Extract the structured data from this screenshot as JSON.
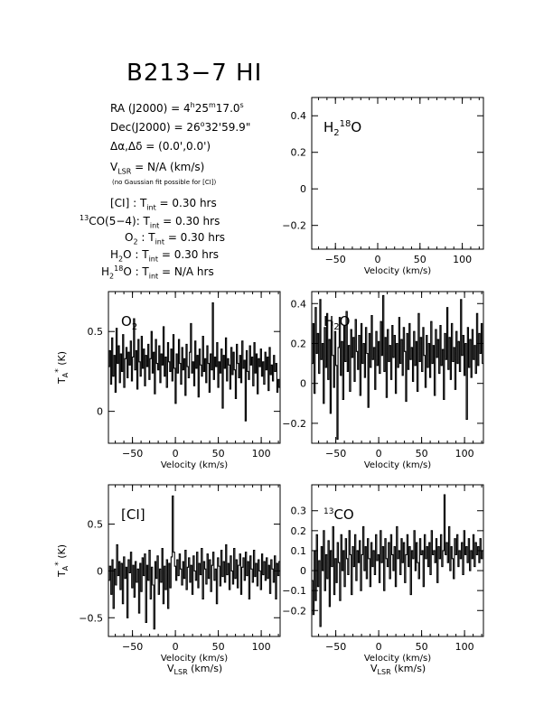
{
  "title": "B213−7 HI",
  "info": {
    "ra": {
      "prefix": "RA (J2000) =  4",
      "h": "h",
      "mid1": "25",
      "m": "m",
      "mid2": "17.0",
      "s": "s"
    },
    "dec": {
      "prefix": "Dec(J2000) =  26",
      "deg": "o",
      "rest": "32'59.9\""
    },
    "offset": "Δα,Δδ = (0.0',0.0')",
    "vlsr": {
      "main": "V",
      "sub": "LSR",
      "rest": " = N/A  (km/s)"
    },
    "note": "(no Gaussian fit possible for [CI])",
    "tint": [
      {
        "pre": "[CI] : T",
        "sub": "int",
        "post": " = 0.30 hrs",
        "sup": ""
      },
      {
        "pre": "CO(5−4): T",
        "sup": "13",
        "sub": "int",
        "post": " = 0.30 hrs"
      },
      {
        "pre": "O",
        "sub2": "2",
        "mid": " : T",
        "sub": "int",
        "post": " = 0.30 hrs"
      },
      {
        "pre": "H",
        "sub2": "2",
        "mid": "O : T",
        "sub": "int",
        "post": " = 0.30 hrs"
      },
      {
        "pre": "H",
        "sub2": "2",
        "sup2": "18",
        "mid": "O : T",
        "sub": "int",
        "post": " = N/A  hrs"
      }
    ]
  },
  "colors": {
    "line": "#000000",
    "background": "#ffffff"
  },
  "chart_data": [
    {
      "id": "h218o",
      "type": "line",
      "label_main": "H",
      "label_sub": "2",
      "label_sup": "18",
      "label_tail": "O",
      "xlabel": "Velocity (km/s)",
      "ylabel": "",
      "xlim": [
        -78,
        125
      ],
      "ylim": [
        -0.33,
        0.5
      ],
      "xticks": [
        -50,
        0,
        50,
        100
      ],
      "yticks": [
        -0.2,
        0,
        0.2,
        0.4
      ],
      "xticklabels": [
        "−50",
        "0",
        "50",
        "100"
      ],
      "yticklabels": [
        "−0.2",
        "0",
        "0.2",
        "0.4"
      ],
      "series": []
    },
    {
      "id": "o2",
      "type": "line",
      "label_main": "O",
      "label_sub": "2",
      "label_sup": "",
      "label_tail": "",
      "xlabel": "Velocity (km/s)",
      "ylabel": "T",
      "xlim": [
        -78,
        122
      ],
      "ylim": [
        -0.2,
        0.75
      ],
      "xticks": [
        -50,
        0,
        50,
        100
      ],
      "yticks": [
        0,
        0.5
      ],
      "xticklabels": [
        "−50",
        "0",
        "50",
        "100"
      ],
      "yticklabels": [
        "0",
        "0.5"
      ],
      "series": [
        {
          "values": [
            0.28,
            0.38,
            0.17,
            0.46,
            0.22,
            0.35,
            0.12,
            0.52,
            0.3,
            0.41,
            0.18,
            0.36,
            0.25,
            0.48,
            0.15,
            0.33,
            0.4,
            0.21,
            0.37,
            0.29,
            0.44,
            0.19,
            0.34,
            0.58,
            0.26,
            0.38,
            0.14,
            0.45,
            0.31,
            0.22,
            0.47,
            0.27,
            0.39,
            0.16,
            0.35,
            0.28,
            0.42,
            0.2,
            0.33,
            0.5,
            0.24,
            0.37,
            0.11,
            0.45,
            0.3,
            0.26,
            0.41,
            0.18,
            0.36,
            0.29,
            0.53,
            0.22,
            0.34,
            0.15,
            0.43,
            0.31,
            0.25,
            0.39,
            0.19,
            0.48,
            0.27,
            0.05,
            0.36,
            0.24,
            0.45,
            0.3,
            0.17,
            0.4,
            0.26,
            0.33,
            0.1,
            0.42,
            0.28,
            0.21,
            0.37,
            0.55,
            0.24,
            0.31,
            0.16,
            0.44,
            0.27,
            0.35,
            0.09,
            0.39,
            0.29,
            0.22,
            0.47,
            0.25,
            0.33,
            0.18,
            0.41,
            0.3,
            0.12,
            0.36,
            0.26,
            0.68,
            0.2,
            0.34,
            0.28,
            0.43,
            0.15,
            0.31,
            0.24,
            0.39,
            0.02,
            0.35,
            0.27,
            0.46,
            0.19,
            0.33,
            0.29,
            0.14,
            0.4,
            0.23,
            0.37,
            0.26,
            0.08,
            0.42,
            0.3,
            0.21,
            0.35,
            0.18,
            0.44,
            0.27,
            0.32,
            -0.06,
            0.38,
            0.25,
            0.2,
            0.41,
            0.29,
            0.34,
            0.16,
            0.43,
            0.24,
            0.36,
            0.11,
            0.33,
            0.28,
            0.39,
            0.22,
            0.31,
            0.17,
            0.37,
            0.26,
            0.34,
            0.13,
            0.4,
            0.23,
            0.29,
            0.19,
            0.35,
            0.25,
            0.3,
            0.12,
            0.2,
            0.15
          ]
        }
      ]
    },
    {
      "id": "h2o",
      "type": "line",
      "label_main": "H",
      "label_sub": "2",
      "label_sup": "",
      "label_tail": "O",
      "xlabel": "Velocity (km/s)",
      "ylabel": "",
      "xlim": [
        -78,
        122
      ],
      "ylim": [
        -0.3,
        0.46
      ],
      "xticks": [
        -50,
        0,
        50,
        100
      ],
      "yticks": [
        -0.2,
        0,
        0.2,
        0.4
      ],
      "xticklabels": [
        "−50",
        "0",
        "50",
        "100"
      ],
      "yticklabels": [
        "−0.2",
        "0",
        "0.2",
        "0.4"
      ],
      "series": [
        {
          "values": [
            0.1,
            0.3,
            -0.05,
            0.38,
            0.15,
            0.25,
            0.05,
            0.42,
            0.12,
            0.2,
            -0.1,
            0.28,
            0.08,
            0.35,
            0.02,
            0.22,
            -0.15,
            0.31,
            0.14,
            -0.02,
            0.26,
            0.09,
            -0.28,
            0.18,
            0.33,
            0.04,
            0.21,
            -0.08,
            0.29,
            0.11,
            0.36,
            0.06,
            0.19,
            -0.04,
            0.27,
            0.13,
            0.23,
            0.01,
            0.32,
            0.16,
            0.07,
            0.24,
            -0.06,
            0.3,
            0.1,
            0.2,
            0.03,
            0.28,
            0.15,
            -0.12,
            0.25,
            0.08,
            0.34,
            0.12,
            0.18,
            -0.03,
            0.26,
            0.09,
            0.21,
            0.05,
            0.31,
            0.14,
            0.44,
            0.06,
            0.23,
            -0.07,
            0.27,
            0.11,
            0.19,
            0.02,
            0.29,
            0.13,
            0.24,
            -0.05,
            0.2,
            0.08,
            0.33,
            0.1,
            0.22,
            0.04,
            0.28,
            0.16,
            -0.09,
            0.25,
            0.07,
            0.3,
            0.12,
            0.18,
            0.01,
            0.26,
            0.09,
            0.21,
            -0.04,
            0.35,
            0.11,
            0.23,
            0.06,
            0.28,
            0.14,
            -0.02,
            0.24,
            0.08,
            0.2,
            0.03,
            0.31,
            0.1,
            0.19,
            -0.06,
            0.27,
            0.13,
            0.22,
            0.05,
            0.29,
            0.09,
            0.17,
            -0.08,
            0.25,
            0.12,
            0.38,
            0.07,
            0.23,
            0.02,
            0.3,
            0.11,
            0.18,
            -0.03,
            0.26,
            0.1,
            0.21,
            0.06,
            0.42,
            0.14,
            0.24,
            0.04,
            0.2,
            -0.18,
            0.28,
            0.08,
            0.22,
            0.03,
            0.27,
            0.12,
            0.19,
            0.05,
            0.35,
            0.09,
            0.25,
            0.15,
            0.3,
            0.1
          ]
        }
      ]
    },
    {
      "id": "ci",
      "type": "line",
      "label_main": "[CI]",
      "label_sub": "",
      "label_sup": "",
      "label_tail": "",
      "xlabel": "Velocity (km/s)",
      "xlabel2_main": "V",
      "xlabel2_sub": "LSR",
      "xlabel2_tail": " (km/s)",
      "ylabel": "T",
      "xlim": [
        -78,
        122
      ],
      "ylim": [
        -0.7,
        0.92
      ],
      "xticks": [
        -50,
        0,
        50,
        100
      ],
      "yticks": [
        -0.5,
        0,
        0.5
      ],
      "xticklabels": [
        "−50",
        "0",
        "50",
        "100"
      ],
      "yticklabels": [
        "−0.5",
        "0",
        "0.5"
      ],
      "series": [
        {
          "values": [
            -0.1,
            0.05,
            -0.25,
            0.12,
            -0.4,
            0.02,
            -0.15,
            0.28,
            -0.05,
            0.1,
            -0.2,
            0.08,
            -0.35,
            0.15,
            -0.08,
            0.04,
            -0.5,
            0.12,
            -0.02,
            0.2,
            -0.18,
            0.06,
            -0.28,
            0.1,
            -0.12,
            0.02,
            -0.45,
            0.08,
            -0.22,
            0.14,
            -0.05,
            0.18,
            -0.55,
            0.06,
            -0.1,
            0.22,
            -0.3,
            0.04,
            -0.15,
            -0.62,
            0.1,
            -0.08,
            0.16,
            -0.25,
            0.02,
            -0.12,
            0.24,
            -0.35,
            0.05,
            -0.2,
            0.12,
            -0.4,
            0.08,
            -0.18,
            0.15,
            0.8,
            0.2,
            0.05,
            -0.1,
            0.12,
            -0.05,
            0.18,
            0.02,
            -0.15,
            0.1,
            -0.08,
            0.22,
            -0.2,
            0.04,
            0.14,
            -0.12,
            0.06,
            -0.25,
            0.16,
            0.0,
            -0.1,
            0.2,
            -0.18,
            0.08,
            -0.04,
            0.24,
            -0.3,
            0.1,
            0.02,
            -0.14,
            0.18,
            -0.08,
            0.12,
            -0.22,
            0.06,
            0.2,
            -0.1,
            0.02,
            -0.35,
            0.14,
            0.05,
            -0.16,
            0.22,
            -0.06,
            0.1,
            -0.12,
            0.28,
            -0.04,
            0.08,
            -0.2,
            0.16,
            0.0,
            -0.14,
            0.24,
            -0.08,
            0.12,
            -0.18,
            0.06,
            0.18,
            -0.25,
            0.04,
            0.14,
            -0.1,
            0.2,
            -0.05,
            0.1,
            -0.3,
            0.16,
            0.02,
            -0.12,
            0.22,
            -0.06,
            0.08,
            -0.16,
            0.12,
            0.0,
            -0.2,
            0.18,
            -0.04,
            0.1,
            -0.1,
            0.14,
            -0.08,
            0.06,
            -0.24,
            0.12,
            0.02,
            -0.12,
            0.16,
            -0.3,
            0.08,
            -0.05,
            0.1
          ]
        }
      ]
    },
    {
      "id": "13co",
      "type": "line",
      "label_main": "CO",
      "label_sub": "",
      "label_sup": "13",
      "label_tail": "",
      "xlabel": "Velocity (km/s)",
      "xlabel2_main": "V",
      "xlabel2_sub": "LSR",
      "xlabel2_tail": " (km/s)",
      "ylabel": "",
      "xlim": [
        -78,
        122
      ],
      "ylim": [
        -0.33,
        0.43
      ],
      "xticks": [
        -50,
        0,
        50,
        100
      ],
      "yticks": [
        -0.2,
        -0.1,
        0,
        0.1,
        0.2,
        0.3
      ],
      "xticklabels": [
        "−50",
        "0",
        "50",
        "100"
      ],
      "yticklabels": [
        "−0.2",
        "−0.1",
        "0",
        "0.1",
        "0.2",
        "0.3"
      ],
      "series": [
        {
          "values": [
            -0.05,
            -0.22,
            0.1,
            -0.15,
            0.18,
            -0.08,
            0.05,
            -0.28,
            0.12,
            0.0,
            0.2,
            -0.1,
            0.08,
            -0.04,
            0.15,
            -0.18,
            0.1,
            0.02,
            0.22,
            -0.12,
            0.06,
            -0.06,
            0.14,
            0.04,
            -0.15,
            0.18,
            0.0,
            0.1,
            -0.08,
            0.16,
            0.06,
            -0.02,
            0.2,
            0.08,
            -0.12,
            0.12,
            0.02,
            0.18,
            -0.05,
            0.1,
            0.04,
            0.15,
            -0.1,
            0.08,
            0.22,
            0.0,
            0.12,
            -0.04,
            0.16,
            0.06,
            -0.08,
            0.14,
            0.02,
            0.1,
            -0.02,
            0.18,
            0.05,
            0.08,
            -0.06,
            0.2,
            0.04,
            0.12,
            -0.1,
            0.16,
            0.06,
            0.02,
            0.14,
            -0.04,
            0.18,
            0.08,
            0.0,
            0.12,
            -0.08,
            0.22,
            0.06,
            0.1,
            -0.02,
            0.16,
            0.04,
            0.14,
            -0.06,
            0.08,
            0.18,
            0.02,
            0.12,
            -0.12,
            0.1,
            0.06,
            0.2,
            0.0,
            0.14,
            0.04,
            -0.04,
            0.16,
            0.08,
            0.1,
            -0.08,
            0.18,
            0.06,
            0.12,
            0.02,
            0.14,
            -0.02,
            0.2,
            0.08,
            0.1,
            0.04,
            0.16,
            -0.06,
            0.12,
            0.06,
            0.18,
            0.02,
            0.1,
            0.38,
            0.08,
            0.14,
            0.04,
            0.22,
            0.0,
            0.12,
            0.06,
            -0.04,
            0.16,
            0.08,
            0.18,
            0.02,
            0.1,
            0.06,
            0.14,
            -0.02,
            0.2,
            0.08,
            0.12,
            0.04,
            0.16,
            0.0,
            0.1,
            0.06,
            0.18,
            0.02,
            0.14,
            0.08,
            0.12,
            0.04,
            0.16,
            0.06,
            0.1
          ]
        }
      ]
    }
  ]
}
